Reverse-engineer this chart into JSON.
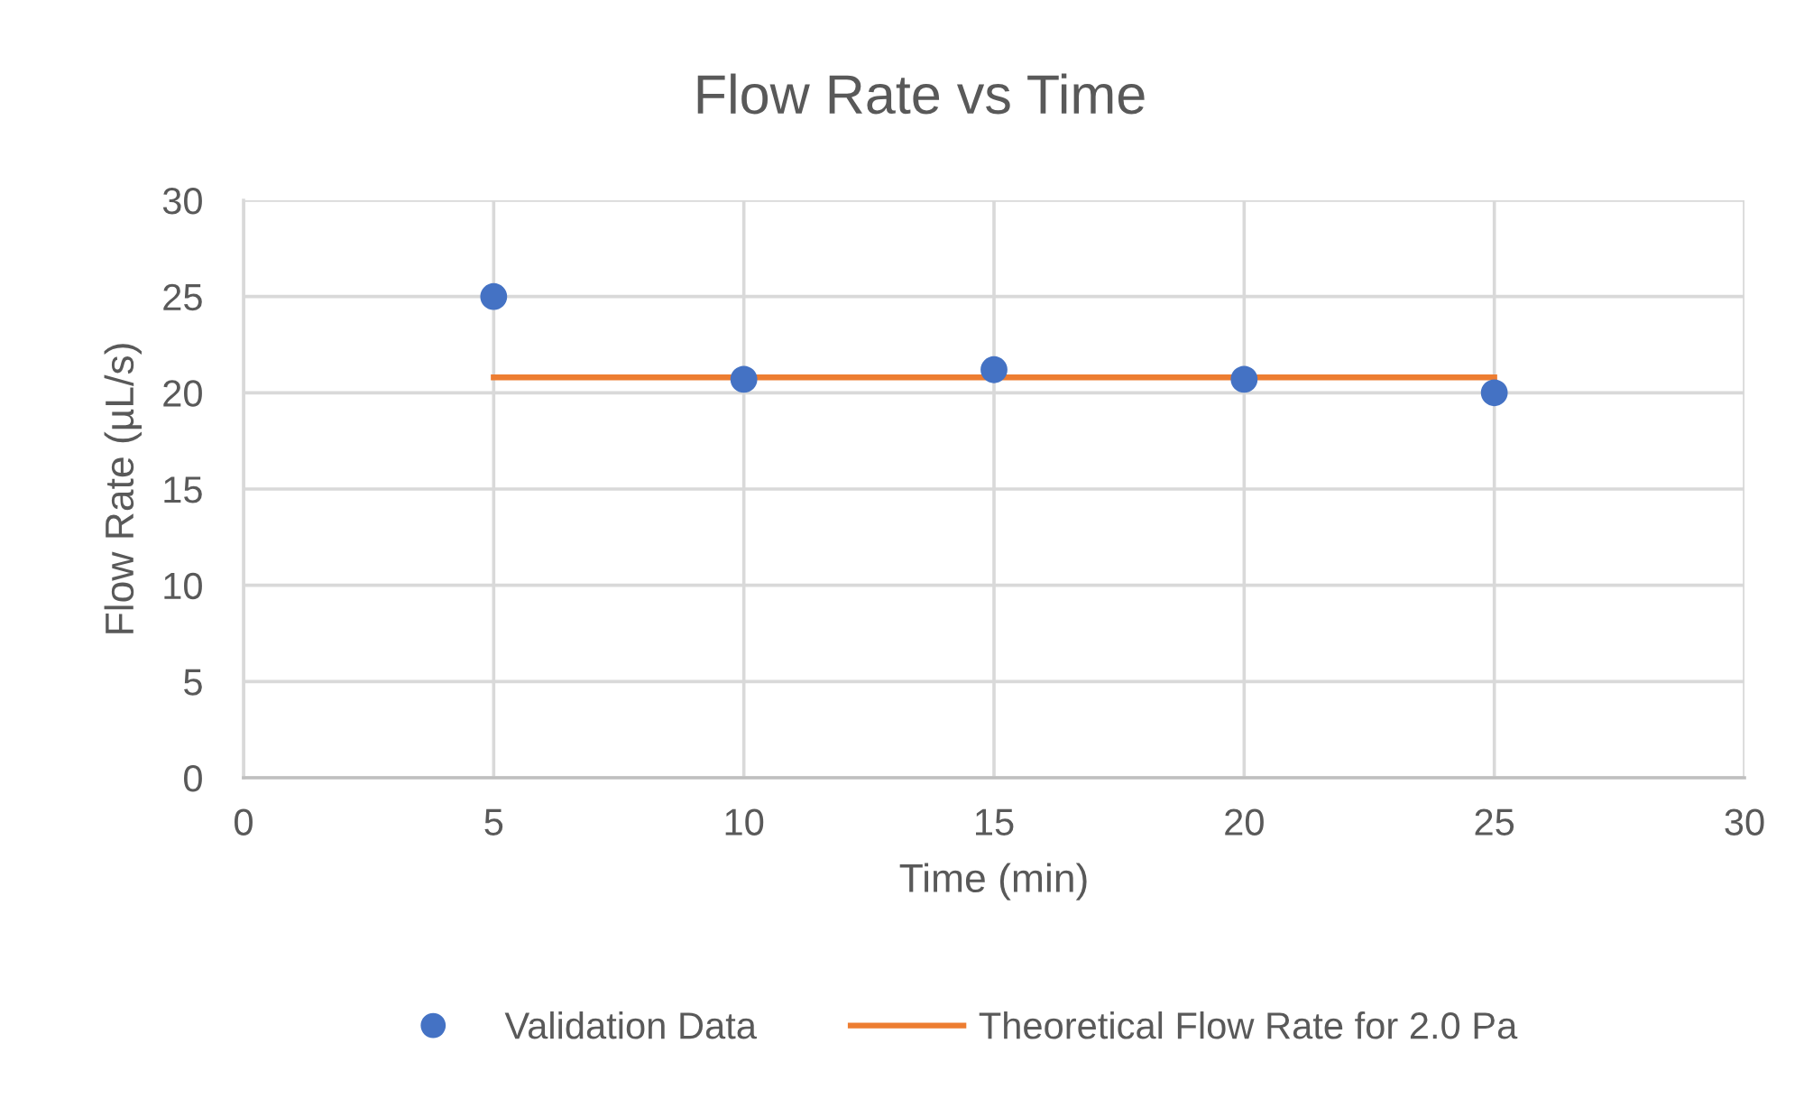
{
  "chart_data": {
    "type": "scatter",
    "title": "Flow Rate vs Time",
    "xlabel": "Time (min)",
    "ylabel": "Flow Rate (µL/s)",
    "series": [
      {
        "name": "Validation Data",
        "color": "#4472c4",
        "marker": "circle",
        "x": [
          5,
          10,
          15,
          20,
          25
        ],
        "values": [
          25,
          20.7,
          21.2,
          20.7,
          20.0
        ]
      },
      {
        "name": "Theoretical Flow Rate for 2.0 Pa",
        "type": "line",
        "color": "#ed7d31",
        "marker": "none",
        "line_style": "solid",
        "x": [
          5,
          25
        ],
        "values": [
          20.8,
          20.8
        ]
      }
    ],
    "xlim": [
      0,
      30
    ],
    "xticks": [
      0,
      5,
      10,
      15,
      20,
      25,
      30
    ],
    "ylim": [
      0,
      30
    ],
    "yticks": [
      0,
      5,
      10,
      15,
      20,
      25,
      30
    ],
    "grid": true,
    "legend": "bottom"
  }
}
